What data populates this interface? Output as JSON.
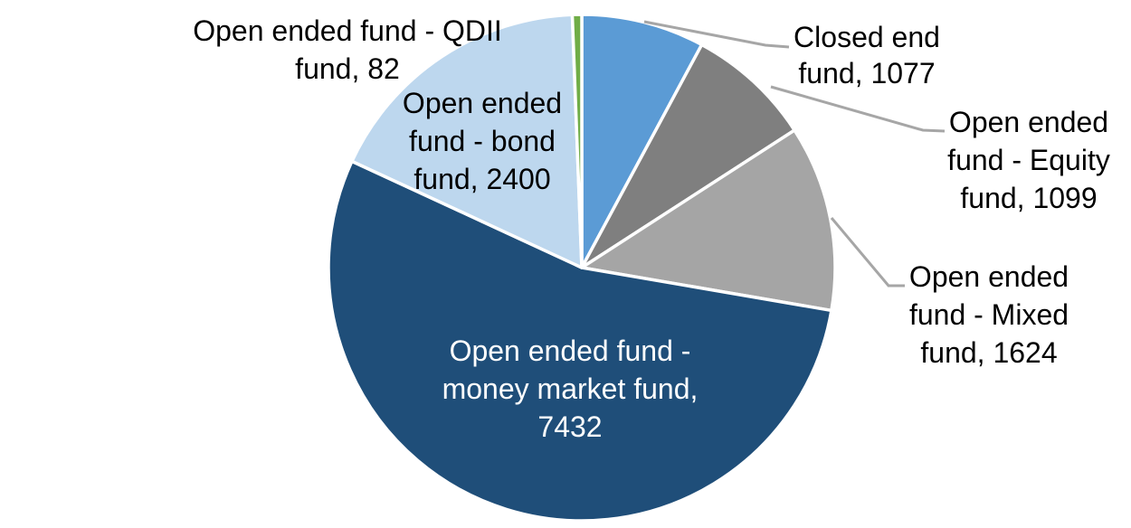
{
  "chart_data": {
    "type": "pie",
    "title": "",
    "legend": "none",
    "background": "#FFFFFF",
    "start_angle_deg": 0,
    "direction": "clockwise",
    "leader_line_color": "#A6A6A6",
    "slices": [
      {
        "label": "Closed end fund",
        "value": 1077,
        "color": "#5B9BD5",
        "label_lines": [
          "Closed end",
          "fund, 1077"
        ],
        "label_color": "#000000",
        "label_position": "outside",
        "leader_line": true
      },
      {
        "label": "Open ended fund - Equity fund",
        "value": 1099,
        "color": "#7F7F7F",
        "label_lines": [
          "Open ended",
          "fund - Equity",
          "fund, 1099"
        ],
        "label_color": "#000000",
        "label_position": "outside",
        "leader_line": true
      },
      {
        "label": "Open ended fund - Mixed fund",
        "value": 1624,
        "color": "#A5A5A5",
        "label_lines": [
          "Open ended",
          "fund - Mixed",
          "fund, 1624"
        ],
        "label_color": "#000000",
        "label_position": "outside",
        "leader_line": true
      },
      {
        "label": "Open ended fund - money market fund",
        "value": 7432,
        "color": "#1F4E79",
        "label_lines": [
          "Open ended fund -",
          "money market fund,",
          "7432"
        ],
        "label_color": "#FFFFFF",
        "label_position": "inside",
        "leader_line": false
      },
      {
        "label": "Open ended fund - bond fund",
        "value": 2400,
        "color": "#BDD7EE",
        "label_lines": [
          "Open ended",
          "fund - bond",
          "fund, 2400"
        ],
        "label_color": "#000000",
        "label_position": "outside",
        "leader_line": false
      },
      {
        "label": "Open ended fund - QDII fund",
        "value": 82,
        "color": "#70AD47",
        "label_lines": [
          "Open ended fund - QDII",
          "fund, 82"
        ],
        "label_color": "#000000",
        "label_position": "outside",
        "leader_line": false
      }
    ]
  }
}
